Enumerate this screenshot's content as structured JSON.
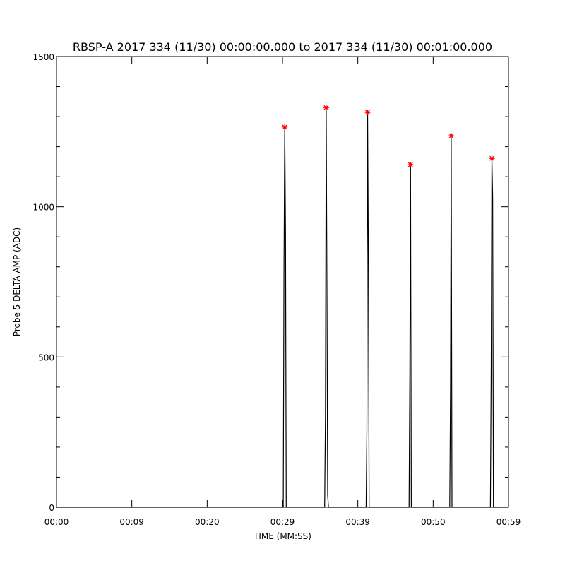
{
  "chart_data": {
    "type": "line",
    "title": "RBSP-A 2017 334 (11/30) 00:00:00.000 to 2017 334 (11/30) 00:01:00.000",
    "xlabel": "TIME (MM:SS)",
    "ylabel": "Probe 5 DELTA AMP (ADC)",
    "xlim": [
      0,
      60
    ],
    "ylim": [
      0,
      1500
    ],
    "x_unit": "seconds",
    "x_ticks": [
      0,
      10,
      20,
      30,
      40,
      50,
      60
    ],
    "x_tick_labels": [
      "00:00",
      "00:09",
      "00:20",
      "00:29",
      "00:39",
      "00:50",
      "00:59"
    ],
    "y_ticks": [
      0,
      500,
      1000,
      1500
    ],
    "y_tick_labels": [
      "0",
      "500",
      "1000",
      "1500"
    ],
    "grid": false,
    "series": [
      {
        "kind": "trace",
        "color": "#000000",
        "x": [
          0,
          30.1,
          30.2,
          30.3,
          30.4,
          30.5,
          30.6,
          35.6,
          35.7,
          35.8,
          35.9,
          36.0,
          36.1,
          41.1,
          41.2,
          41.3,
          41.4,
          41.5,
          46.8,
          46.9,
          47.0,
          47.1,
          52.2,
          52.3,
          52.4,
          52.5,
          57.6,
          57.7,
          57.8,
          57.9,
          58.0,
          60
        ],
        "y": [
          0,
          0,
          780,
          1265,
          920,
          0,
          0,
          0,
          300,
          1330,
          760,
          40,
          0,
          0,
          250,
          1314,
          830,
          0,
          0,
          440,
          1140,
          0,
          0,
          390,
          1236,
          0,
          0,
          460,
          1161,
          1030,
          0,
          0
        ]
      },
      {
        "kind": "peaks",
        "marker": "asterisk",
        "color": "#ff0000",
        "x": [
          30.3,
          35.8,
          41.3,
          47.0,
          52.4,
          57.8
        ],
        "y": [
          1265,
          1330,
          1314,
          1140,
          1236,
          1161
        ]
      }
    ]
  }
}
